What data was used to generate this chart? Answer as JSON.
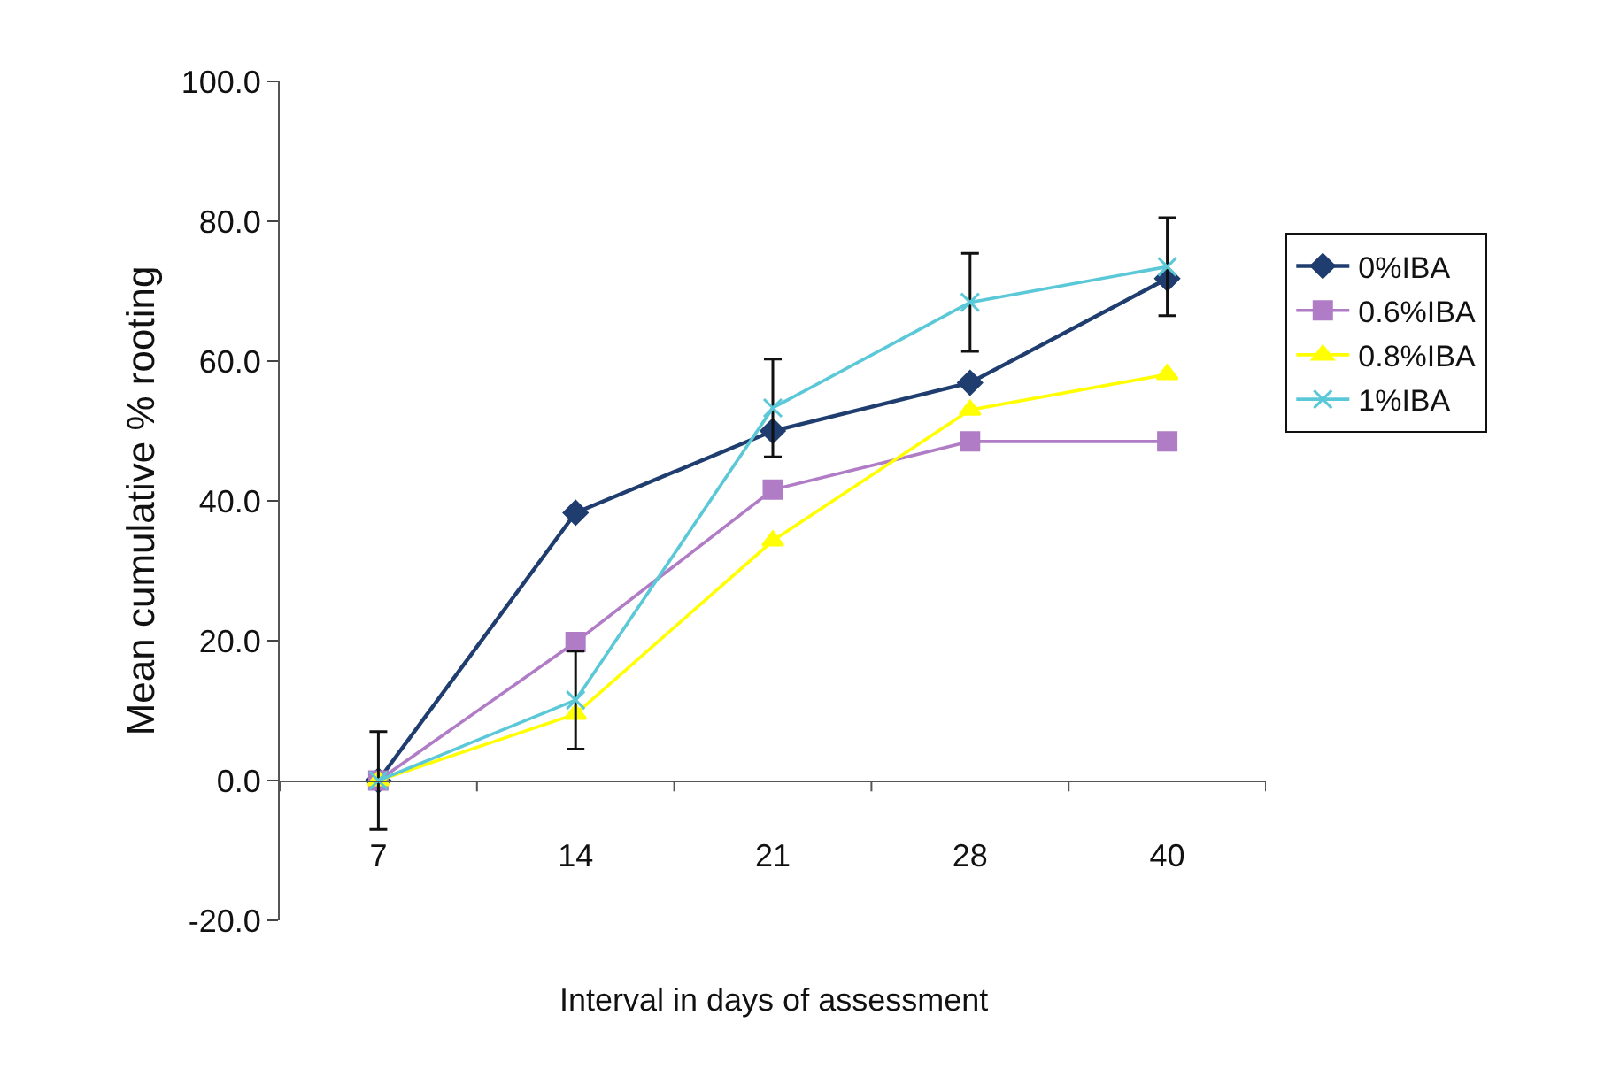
{
  "chart_data": {
    "type": "line",
    "xlabel": "Interval in days of assessment",
    "ylabel": "Mean cumulative % rooting",
    "categories": [
      "7",
      "14",
      "21",
      "28",
      "40"
    ],
    "ylim": [
      -20,
      100
    ],
    "yticks": [
      {
        "value": -20,
        "label": "-20.0"
      },
      {
        "value": 0,
        "label": "0.0"
      },
      {
        "value": 20,
        "label": "20.0"
      },
      {
        "value": 40,
        "label": "40.0"
      },
      {
        "value": 60,
        "label": "60.0"
      },
      {
        "value": 80,
        "label": "80.0"
      },
      {
        "value": 100,
        "label": "100.0"
      }
    ],
    "legend": "right",
    "line_style": "solid",
    "series": [
      {
        "name": "0%IBA",
        "color": "#1f3d6e",
        "marker": "diamond",
        "values": [
          0,
          38.3,
          50.0,
          56.9,
          71.8
        ]
      },
      {
        "name": "0.6%IBA",
        "color": "#b07cc6",
        "marker": "square",
        "values": [
          0,
          19.8,
          41.6,
          48.5,
          48.5
        ]
      },
      {
        "name": "0.8%IBA",
        "color": "#ffff00",
        "marker": "triangle",
        "values": [
          0,
          9.5,
          34.3,
          53.0,
          58.1
        ]
      },
      {
        "name": "1%IBA",
        "color": "#5bc8d8",
        "marker": "cross",
        "values": [
          0,
          11.5,
          53.3,
          68.4,
          73.5
        ],
        "errors": [
          7,
          7,
          7,
          7,
          7
        ]
      }
    ]
  }
}
